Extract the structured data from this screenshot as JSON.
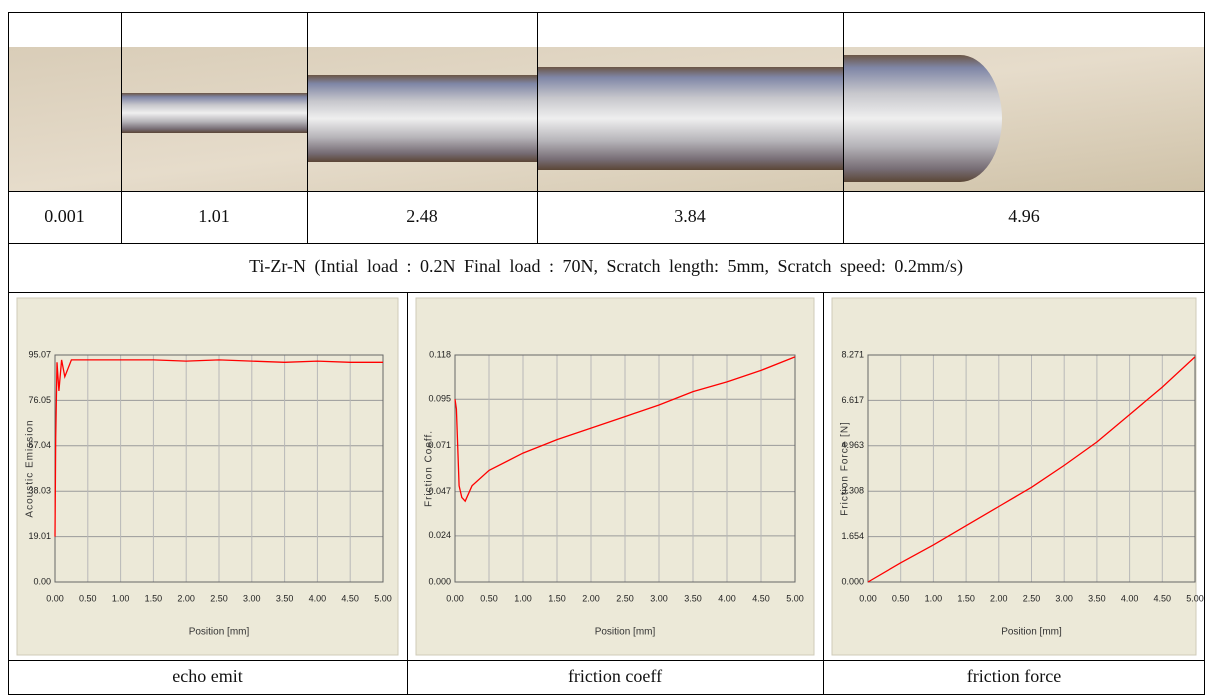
{
  "table": {
    "load_labels": [
      "0.001",
      "1.01",
      "2.48",
      "3.84",
      "4.96"
    ],
    "caption": "Ti-Zr-N (Intial load : 0.2N Final load : 70N, Scratch length: 5mm, Scratch speed: 0.2mm/s)",
    "chart_captions": [
      "echo emit",
      "friction coeff",
      "friction force"
    ]
  },
  "chart_data": [
    {
      "type": "line",
      "ylabel": "Acoustic Emission",
      "xlabel": "Position [mm]",
      "color": "#ff0000",
      "grid": true,
      "xlim": [
        0,
        5
      ],
      "ylim": [
        0,
        95.07
      ],
      "xticks": [
        {
          "value": 0,
          "label": "0.00"
        },
        {
          "value": 0.5,
          "label": "0.50"
        },
        {
          "value": 1,
          "label": "1.00"
        },
        {
          "value": 1.5,
          "label": "1.50"
        },
        {
          "value": 2,
          "label": "2.00"
        },
        {
          "value": 2.5,
          "label": "2.50"
        },
        {
          "value": 3,
          "label": "3.00"
        },
        {
          "value": 3.5,
          "label": "3.50"
        },
        {
          "value": 4,
          "label": "4.00"
        },
        {
          "value": 4.5,
          "label": "4.50"
        },
        {
          "value": 5,
          "label": "5.00"
        }
      ],
      "yticks": [
        {
          "value": 0,
          "label": "0.00"
        },
        19.01,
        38.03,
        57.04,
        76.05,
        95.07
      ],
      "x": [
        0,
        0.01,
        0.03,
        0.06,
        0.1,
        0.15,
        0.25,
        0.5,
        1,
        1.5,
        2,
        2.5,
        3,
        3.5,
        4,
        4.5,
        5
      ],
      "values": [
        19,
        60,
        92,
        80,
        93,
        86,
        93,
        93,
        93,
        93,
        92.5,
        93,
        92.5,
        92,
        92.5,
        92,
        92
      ]
    },
    {
      "type": "line",
      "ylabel": "Friction Coeff.",
      "xlabel": "Position [mm]",
      "color": "#ff0000",
      "grid": true,
      "xlim": [
        0,
        5
      ],
      "ylim": [
        0,
        0.118
      ],
      "xticks": [
        {
          "value": 0,
          "label": "0.00"
        },
        {
          "value": 0.5,
          "label": "0.50"
        },
        {
          "value": 1,
          "label": "1.00"
        },
        {
          "value": 1.5,
          "label": "1.50"
        },
        {
          "value": 2,
          "label": "2.00"
        },
        {
          "value": 2.5,
          "label": "2.50"
        },
        {
          "value": 3,
          "label": "3.00"
        },
        {
          "value": 3.5,
          "label": "3.50"
        },
        {
          "value": 4,
          "label": "4.00"
        },
        {
          "value": 4.5,
          "label": "4.50"
        },
        {
          "value": 5,
          "label": "5.00"
        }
      ],
      "yticks": [
        {
          "value": 0,
          "label": "0.000"
        },
        0.024,
        0.047,
        0.071,
        0.095,
        0.118
      ],
      "x": [
        0,
        0.02,
        0.06,
        0.1,
        0.15,
        0.25,
        0.5,
        1,
        1.5,
        2,
        2.5,
        3,
        3.5,
        4,
        4.5,
        5
      ],
      "values": [
        0.095,
        0.09,
        0.05,
        0.044,
        0.042,
        0.05,
        0.058,
        0.067,
        0.074,
        0.08,
        0.086,
        0.092,
        0.099,
        0.104,
        0.11,
        0.117
      ]
    },
    {
      "type": "line",
      "ylabel": "Friction Force [N]",
      "xlabel": "Position [mm]",
      "color": "#ff0000",
      "grid": true,
      "xlim": [
        0,
        5
      ],
      "ylim": [
        0,
        8.271
      ],
      "xticks": [
        {
          "value": 0,
          "label": "0.00"
        },
        {
          "value": 0.5,
          "label": "0.50"
        },
        {
          "value": 1,
          "label": "1.00"
        },
        {
          "value": 1.5,
          "label": "1.50"
        },
        {
          "value": 2,
          "label": "2.00"
        },
        {
          "value": 2.5,
          "label": "2.50"
        },
        {
          "value": 3,
          "label": "3.00"
        },
        {
          "value": 3.5,
          "label": "3.50"
        },
        {
          "value": 4,
          "label": "4.00"
        },
        {
          "value": 4.5,
          "label": "4.50"
        },
        {
          "value": 5,
          "label": "5.00"
        }
      ],
      "yticks": [
        {
          "value": 0,
          "label": "0.000"
        },
        1.654,
        3.308,
        4.963,
        6.617,
        8.271
      ],
      "x": [
        0,
        0.5,
        1,
        1.5,
        2,
        2.5,
        3,
        3.5,
        4,
        4.5,
        5
      ],
      "values": [
        0,
        0.7,
        1.35,
        2.05,
        2.75,
        3.45,
        4.25,
        5.1,
        6.1,
        7.1,
        8.2
      ]
    }
  ]
}
